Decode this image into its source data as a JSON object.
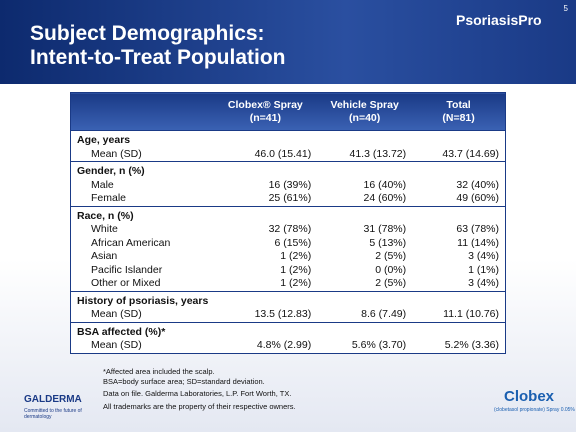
{
  "header": {
    "title": [
      "Subject Demographics:",
      "Intent-to-Treat Population"
    ],
    "page_number": "5",
    "brand": "PsoriasisPro"
  },
  "table": {
    "columns": [
      [
        "Clobex® Spray",
        "(n=41)"
      ],
      [
        "Vehicle Spray",
        "(n=40)"
      ],
      [
        "Total",
        "(N=81)"
      ]
    ],
    "sections": [
      {
        "title": "Age, years",
        "rows": [
          [
            "Mean (SD)",
            "46.0 (15.41)",
            "41.3 (13.72)",
            "43.7 (14.69)"
          ]
        ]
      },
      {
        "title": "Gender, n (%)",
        "rows": [
          [
            "Male",
            "16 (39%)",
            "16 (40%)",
            "32 (40%)"
          ],
          [
            "Female",
            "25 (61%)",
            "24 (60%)",
            "49 (60%)"
          ]
        ]
      },
      {
        "title": "Race, n (%)",
        "rows": [
          [
            "White",
            "32 (78%)",
            "31 (78%)",
            "63 (78%)"
          ],
          [
            "African American",
            "6 (15%)",
            "5 (13%)",
            "11 (14%)"
          ],
          [
            "Asian",
            "1 (2%)",
            "2 (5%)",
            "3 (4%)"
          ],
          [
            "Pacific Islander",
            "1 (2%)",
            "0 (0%)",
            "1 (1%)"
          ],
          [
            "Other or Mixed",
            "1 (2%)",
            "2 (5%)",
            "3 (4%)"
          ]
        ]
      },
      {
        "title": "History of psoriasis, years",
        "rows": [
          [
            "Mean (SD)",
            "13.5 (12.83)",
            "8.6 (7.49)",
            "11.1 (10.76)"
          ]
        ]
      },
      {
        "title": "BSA affected (%)*",
        "rows": [
          [
            "Mean (SD)",
            "4.8% (2.99)",
            "5.6% (3.70)",
            "5.2% (3.36)"
          ]
        ]
      }
    ]
  },
  "footnotes": [
    "*Affected area included the scalp.",
    "BSA=body surface area; SD=standard deviation.",
    "Data on file. Galderma Laboratories, L.P. Fort Worth, TX.",
    "All trademarks are the property of their respective owners."
  ],
  "logos": {
    "galderma": "GALDERMA",
    "galderma_tagline": "Committed to the future of dermatology",
    "clobex": "Clobex",
    "clobex_tagline": "(clobetasol propionate) Spray 0.05%"
  }
}
